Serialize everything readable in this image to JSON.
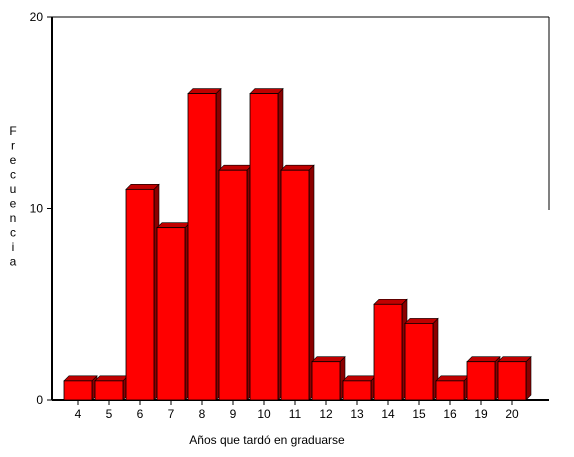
{
  "chart_data": {
    "type": "bar",
    "categories": [
      "4",
      "5",
      "6",
      "7",
      "8",
      "9",
      "10",
      "11",
      "12",
      "13",
      "14",
      "15",
      "16",
      "19",
      "20"
    ],
    "values": [
      1,
      1,
      11,
      9,
      16,
      12,
      16,
      12,
      2,
      1,
      5,
      4,
      1,
      2,
      2
    ],
    "xlabel": "Años que tardó en graduarse",
    "ylabel": "Frecuencia",
    "ylim": [
      0,
      20
    ],
    "yticks": [
      "0",
      "10",
      "20"
    ],
    "grid": false,
    "bar_color": "#ff0000",
    "bar_top_color": "#c00000",
    "bar_side_color": "#8b0000"
  }
}
